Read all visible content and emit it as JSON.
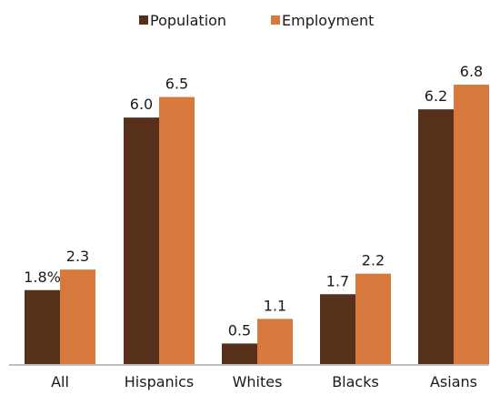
{
  "chart_data": {
    "type": "bar",
    "categories": [
      "All",
      "Hispanics",
      "Whites",
      "Blacks",
      "Asians"
    ],
    "series": [
      {
        "name": "Population",
        "color": "#56301a",
        "values": [
          1.8,
          6.0,
          0.5,
          1.7,
          6.2
        ],
        "labels": [
          "1.8%",
          "6.0",
          "0.5",
          "1.7",
          "6.2"
        ]
      },
      {
        "name": "Employment",
        "color": "#d7793c",
        "values": [
          2.3,
          6.5,
          1.1,
          2.2,
          6.8
        ],
        "labels": [
          "2.3",
          "6.5",
          "1.1",
          "2.2",
          "6.8"
        ]
      }
    ],
    "ylim": [
      0,
      7.2
    ],
    "grid": false,
    "legend_position": "top-center",
    "title": "",
    "xlabel": "",
    "ylabel": ""
  }
}
